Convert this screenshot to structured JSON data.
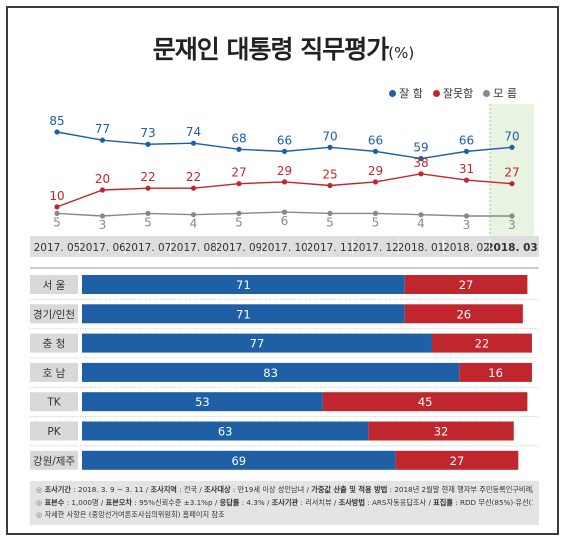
{
  "title": "문재인 대통령 직무평가",
  "title_unit": "(%)",
  "chart_data": [
    {
      "type": "line",
      "x": [
        "2017. 05",
        "2017. 06",
        "2017. 07",
        "2017. 08",
        "2017. 09",
        "2017. 10",
        "2017. 11",
        "2017. 12",
        "2018. 01",
        "2018. 02",
        "2018. 03"
      ],
      "series": [
        {
          "name": "잘 함",
          "color": "#1f5fa6",
          "values": [
            85,
            77,
            73,
            74,
            68,
            66,
            70,
            66,
            59,
            66,
            70
          ]
        },
        {
          "name": "잘못함",
          "color": "#c0262d",
          "values": [
            10,
            20,
            22,
            22,
            27,
            29,
            25,
            29,
            38,
            31,
            27
          ]
        },
        {
          "name": "모 름",
          "color": "#888888",
          "values": [
            5,
            3,
            5,
            4,
            5,
            6,
            5,
            5,
            4,
            3,
            3
          ]
        }
      ],
      "highlight_x": "2018. 03",
      "legend_position": "top-right"
    },
    {
      "type": "bar",
      "stacked": true,
      "orientation": "horizontal",
      "categories": [
        "서 울",
        "경기/인천",
        "충 청",
        "호 남",
        "TK",
        "PK",
        "강원/제주"
      ],
      "series": [
        {
          "name": "잘 함",
          "color": "#1f5fa6",
          "values": [
            71,
            71,
            77,
            83,
            53,
            63,
            69
          ]
        },
        {
          "name": "잘못함",
          "color": "#c0262d",
          "values": [
            27,
            26,
            22,
            16,
            45,
            32,
            27
          ]
        }
      ]
    }
  ],
  "footer": {
    "row1": [
      {
        "k": "조사기간",
        "v": " : 2018. 3. 9 ~ 3. 11 / "
      },
      {
        "k": "조사지역",
        "v": " : 전국 / "
      },
      {
        "k": "조사대상",
        "v": " : 만19세 이상 성인남녀 / "
      },
      {
        "k": "가중값 산출 및 적용 방법",
        "v": " : 2018년 2월말 현재 행자부 주민등록인구비례/림가중"
      }
    ],
    "row2": [
      {
        "k": "표본수",
        "v": " : 1,000명 / "
      },
      {
        "k": "표본오차",
        "v": " : 95%신뢰수준 ±3.1%p / "
      },
      {
        "k": "응답률",
        "v": " : 4.3% / "
      },
      {
        "k": "조사기관",
        "v": " : 리서치뷰 / "
      },
      {
        "k": "조사방법",
        "v": " : ARS자동응답조사 / "
      },
      {
        "k": "표집틀",
        "v": " : RDD 무선(85%)·유선(15%)"
      }
    ],
    "row3": "자세한 사항은 (중앙선거여론조사심의위원회) 홈페이지 참조"
  }
}
